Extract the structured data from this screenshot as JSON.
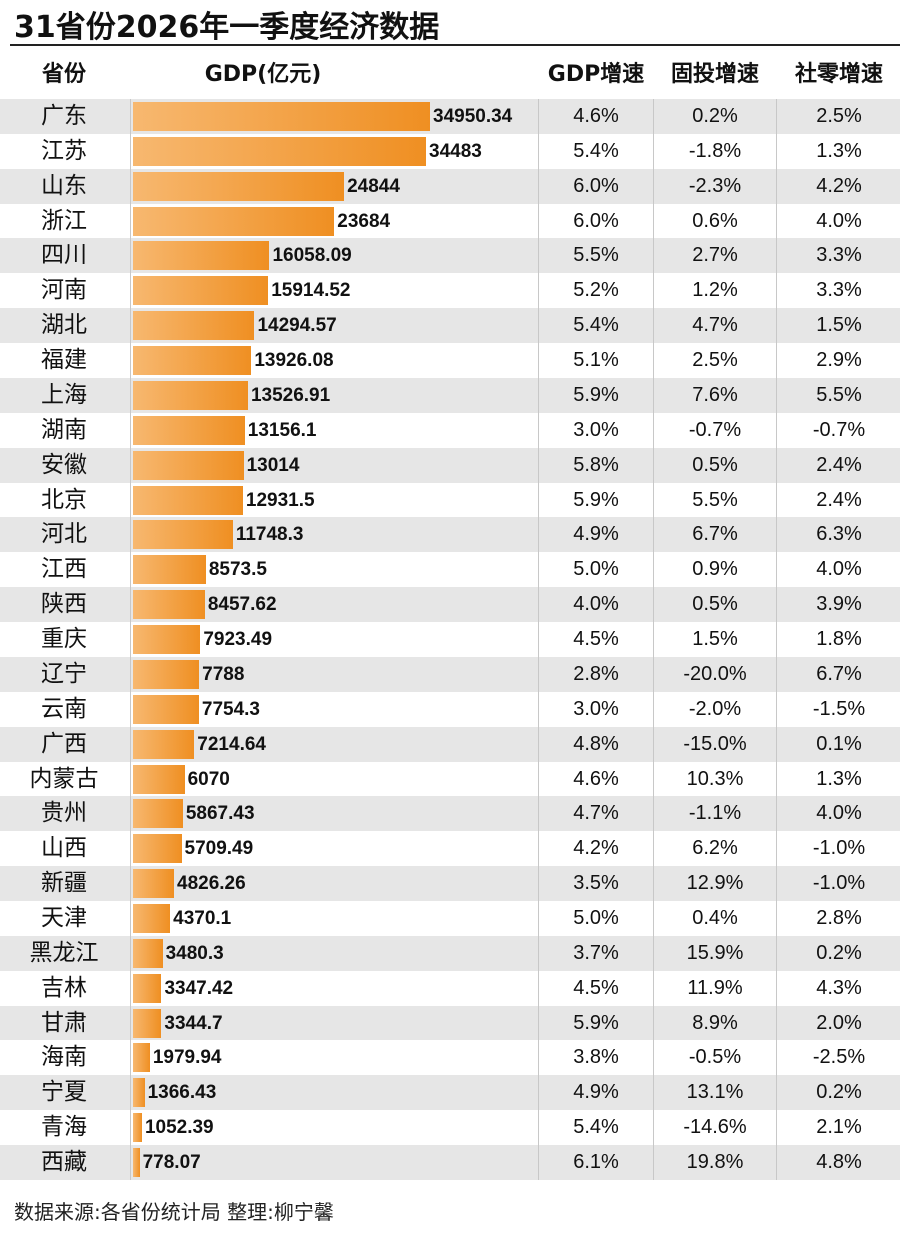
{
  "title": "31省份2026年一季度经济数据",
  "headers": {
    "province": "省份",
    "gdp": "GDP(亿元)",
    "gdp_growth": "GDP增速",
    "investment_growth": "固投增速",
    "retail_growth": "社零增速"
  },
  "chart_data": {
    "type": "table",
    "columns": [
      "省份",
      "GDP(亿元)",
      "GDP增速",
      "固投增速",
      "社零增速"
    ],
    "rows": [
      {
        "province": "广东",
        "gdp": "34950.34",
        "gdp_growth": "4.6%",
        "investment_growth": "0.2%",
        "retail_growth": "2.5%"
      },
      {
        "province": "江苏",
        "gdp": "34483",
        "gdp_growth": "5.4%",
        "investment_growth": "-1.8%",
        "retail_growth": "1.3%"
      },
      {
        "province": "山东",
        "gdp": "24844",
        "gdp_growth": "6.0%",
        "investment_growth": "-2.3%",
        "retail_growth": "4.2%"
      },
      {
        "province": "浙江",
        "gdp": "23684",
        "gdp_growth": "6.0%",
        "investment_growth": "0.6%",
        "retail_growth": "4.0%"
      },
      {
        "province": "四川",
        "gdp": "16058.09",
        "gdp_growth": "5.5%",
        "investment_growth": "2.7%",
        "retail_growth": "3.3%"
      },
      {
        "province": "河南",
        "gdp": "15914.52",
        "gdp_growth": "5.2%",
        "investment_growth": "1.2%",
        "retail_growth": "3.3%"
      },
      {
        "province": "湖北",
        "gdp": "14294.57",
        "gdp_growth": "5.4%",
        "investment_growth": "4.7%",
        "retail_growth": "1.5%"
      },
      {
        "province": "福建",
        "gdp": "13926.08",
        "gdp_growth": "5.1%",
        "investment_growth": "2.5%",
        "retail_growth": "2.9%"
      },
      {
        "province": "上海",
        "gdp": "13526.91",
        "gdp_growth": "5.9%",
        "investment_growth": "7.6%",
        "retail_growth": "5.5%"
      },
      {
        "province": "湖南",
        "gdp": "13156.1",
        "gdp_growth": "3.0%",
        "investment_growth": "-0.7%",
        "retail_growth": "-0.7%"
      },
      {
        "province": "安徽",
        "gdp": "13014",
        "gdp_growth": "5.8%",
        "investment_growth": "0.5%",
        "retail_growth": "2.4%"
      },
      {
        "province": "北京",
        "gdp": "12931.5",
        "gdp_growth": "5.9%",
        "investment_growth": "5.5%",
        "retail_growth": "2.4%"
      },
      {
        "province": "河北",
        "gdp": "11748.3",
        "gdp_growth": "4.9%",
        "investment_growth": "6.7%",
        "retail_growth": "6.3%"
      },
      {
        "province": "江西",
        "gdp": "8573.5",
        "gdp_growth": "5.0%",
        "investment_growth": "0.9%",
        "retail_growth": "4.0%"
      },
      {
        "province": "陕西",
        "gdp": "8457.62",
        "gdp_growth": "4.0%",
        "investment_growth": "0.5%",
        "retail_growth": "3.9%"
      },
      {
        "province": "重庆",
        "gdp": "7923.49",
        "gdp_growth": "4.5%",
        "investment_growth": "1.5%",
        "retail_growth": "1.8%"
      },
      {
        "province": "辽宁",
        "gdp": "7788",
        "gdp_growth": "2.8%",
        "investment_growth": "-20.0%",
        "retail_growth": "6.7%"
      },
      {
        "province": "云南",
        "gdp": "7754.3",
        "gdp_growth": "3.0%",
        "investment_growth": "-2.0%",
        "retail_growth": "-1.5%"
      },
      {
        "province": "广西",
        "gdp": "7214.64",
        "gdp_growth": "4.8%",
        "investment_growth": "-15.0%",
        "retail_growth": "0.1%"
      },
      {
        "province": "内蒙古",
        "gdp": "6070",
        "gdp_growth": "4.6%",
        "investment_growth": "10.3%",
        "retail_growth": "1.3%"
      },
      {
        "province": "贵州",
        "gdp": "5867.43",
        "gdp_growth": "4.7%",
        "investment_growth": "-1.1%",
        "retail_growth": "4.0%"
      },
      {
        "province": "山西",
        "gdp": "5709.49",
        "gdp_growth": "4.2%",
        "investment_growth": "6.2%",
        "retail_growth": "-1.0%"
      },
      {
        "province": "新疆",
        "gdp": "4826.26",
        "gdp_growth": "3.5%",
        "investment_growth": "12.9%",
        "retail_growth": "-1.0%"
      },
      {
        "province": "天津",
        "gdp": "4370.1",
        "gdp_growth": "5.0%",
        "investment_growth": "0.4%",
        "retail_growth": "2.8%"
      },
      {
        "province": "黑龙江",
        "gdp": "3480.3",
        "gdp_growth": "3.7%",
        "investment_growth": "15.9%",
        "retail_growth": "0.2%"
      },
      {
        "province": "吉林",
        "gdp": "3347.42",
        "gdp_growth": "4.5%",
        "investment_growth": "11.9%",
        "retail_growth": "4.3%"
      },
      {
        "province": "甘肃",
        "gdp": "3344.7",
        "gdp_growth": "5.9%",
        "investment_growth": "8.9%",
        "retail_growth": "2.0%"
      },
      {
        "province": "海南",
        "gdp": "1979.94",
        "gdp_growth": "3.8%",
        "investment_growth": "-0.5%",
        "retail_growth": "-2.5%"
      },
      {
        "province": "宁夏",
        "gdp": "1366.43",
        "gdp_growth": "4.9%",
        "investment_growth": "13.1%",
        "retail_growth": "0.2%"
      },
      {
        "province": "青海",
        "gdp": "1052.39",
        "gdp_growth": "5.4%",
        "investment_growth": "-14.6%",
        "retail_growth": "2.1%"
      },
      {
        "province": "西藏",
        "gdp": "778.07",
        "gdp_growth": "6.1%",
        "investment_growth": "19.8%",
        "retail_growth": "4.8%"
      }
    ],
    "bar_color": "#ef8f22",
    "stripe_color": "#e6e6e6"
  },
  "footer": "数据来源:各省份统计局  整理:柳宁馨"
}
